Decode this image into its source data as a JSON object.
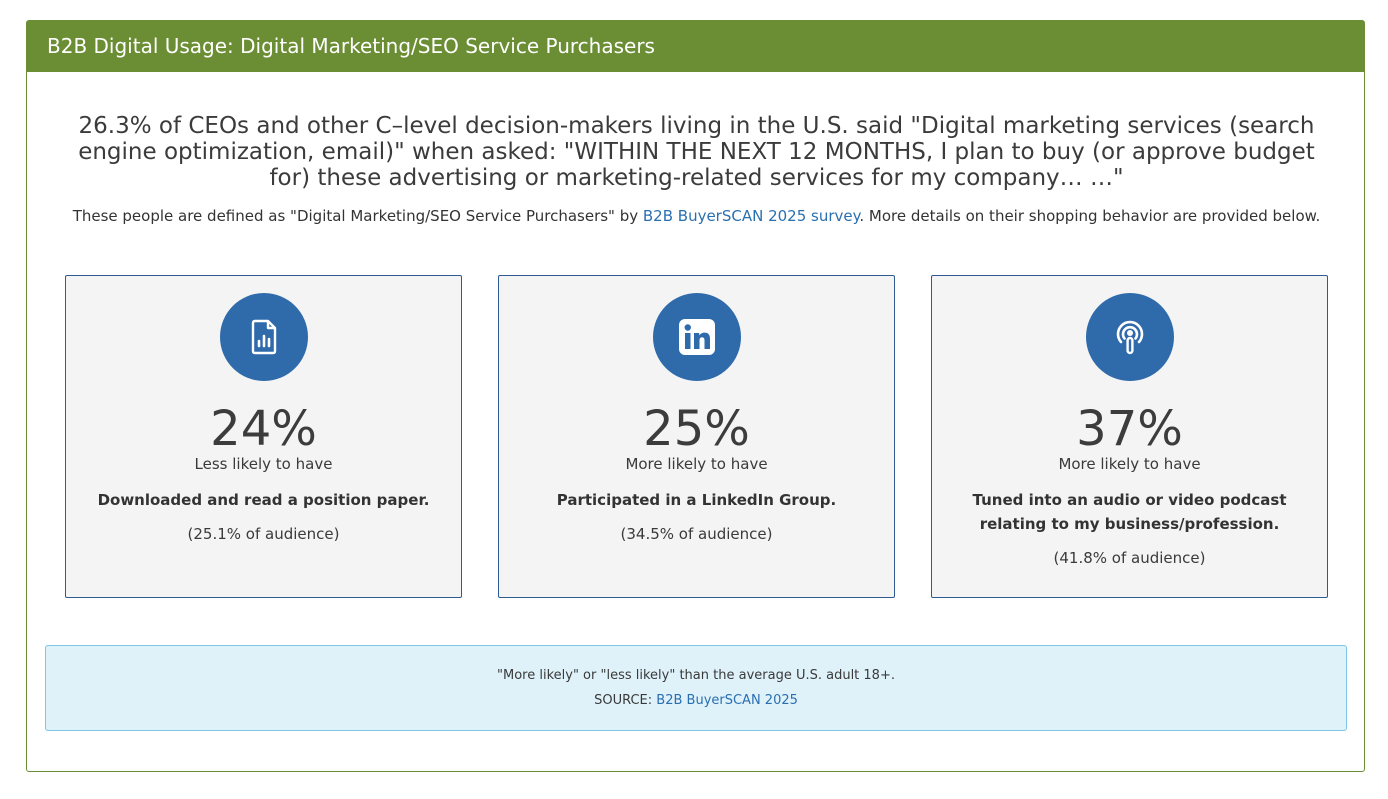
{
  "header": {
    "title": "B2B Digital Usage: Digital Marketing/SEO Service Purchasers"
  },
  "headline": "26.3% of CEOs and other C–level decision-makers living in the U.S. said \"Digital marketing services (search engine optimization, email)\" when asked: \"WITHIN THE NEXT 12 MONTHS, I plan to buy (or approve budget for) these advertising or marketing-related services for my company… …\"",
  "subline": {
    "before": "These people are defined as \"Digital Marketing/SEO Service Purchasers\" by ",
    "link": "B2B BuyerSCAN 2025 survey",
    "after": ". More details on their shopping behavior are provided below."
  },
  "cards": [
    {
      "icon": "document-chart-icon",
      "percent": "24%",
      "likely": "Less likely to have",
      "description": "Downloaded and read a position paper.",
      "audience": "(25.1% of audience)"
    },
    {
      "icon": "linkedin-icon",
      "percent": "25%",
      "likely": "More likely to have",
      "description": "Participated in a LinkedIn Group.",
      "audience": "(34.5% of audience)"
    },
    {
      "icon": "podcast-icon",
      "percent": "37%",
      "likely": "More likely to have",
      "description": "Tuned into an audio or video podcast relating to my business/profession.",
      "audience": "(41.8% of audience)"
    }
  ],
  "footer": {
    "note": "\"More likely\" or \"less likely\" than the average U.S. adult 18+.",
    "source_label": "SOURCE: ",
    "source_link": "B2B BuyerSCAN 2025"
  },
  "colors": {
    "header_green": "#6b8e34",
    "icon_blue": "#2f6aab",
    "link_blue": "#2a6fb0",
    "footer_bg": "#dff2fa"
  }
}
